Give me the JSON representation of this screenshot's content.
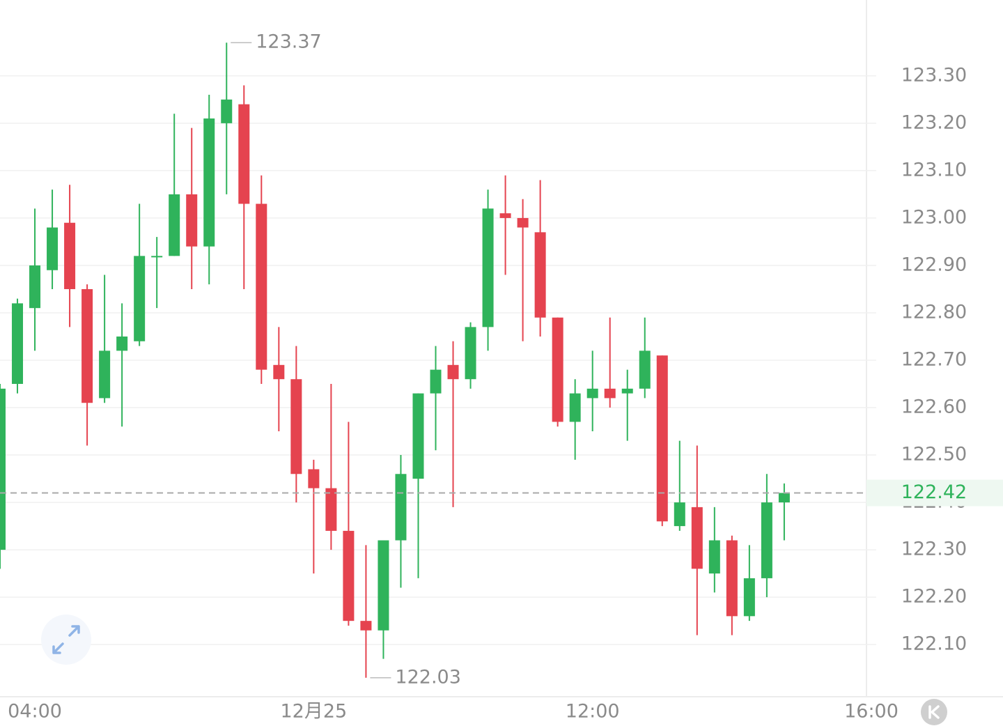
{
  "chart_data": {
    "type": "candlestick",
    "x": [
      0,
      1,
      2,
      3,
      4,
      5,
      6,
      7,
      8,
      9,
      10,
      11,
      12,
      13,
      14,
      15,
      16,
      17,
      18,
      19,
      20,
      21,
      22,
      23,
      24,
      25,
      26,
      27,
      28,
      29,
      30,
      31,
      32,
      33,
      34,
      35,
      36,
      37,
      38,
      39,
      40,
      41,
      42,
      43,
      44,
      45
    ],
    "open": [
      122.3,
      122.65,
      122.81,
      122.89,
      122.99,
      122.85,
      122.62,
      122.72,
      122.74,
      122.92,
      122.92,
      123.05,
      122.94,
      123.2,
      123.24,
      123.03,
      122.69,
      122.66,
      122.47,
      122.43,
      122.34,
      122.15,
      122.13,
      122.32,
      122.45,
      122.63,
      122.69,
      122.66,
      122.77,
      123.01,
      123.0,
      122.97,
      122.79,
      122.57,
      122.62,
      122.64,
      122.63,
      122.64,
      122.71,
      122.35,
      122.39,
      122.25,
      122.32,
      122.16,
      122.24,
      122.4
    ],
    "high": [
      122.65,
      122.83,
      123.02,
      123.06,
      123.07,
      122.86,
      122.88,
      122.82,
      123.03,
      122.96,
      123.22,
      123.19,
      123.26,
      123.37,
      123.28,
      123.09,
      122.77,
      122.73,
      122.49,
      122.65,
      122.57,
      122.31,
      122.32,
      122.5,
      122.63,
      122.73,
      122.74,
      122.78,
      123.06,
      123.09,
      123.04,
      123.08,
      122.79,
      122.66,
      122.72,
      122.79,
      122.68,
      122.79,
      122.71,
      122.53,
      122.52,
      122.39,
      122.33,
      122.31,
      122.46,
      122.44
    ],
    "low": [
      122.26,
      122.63,
      122.72,
      122.85,
      122.77,
      122.52,
      122.61,
      122.56,
      122.73,
      122.81,
      122.92,
      122.85,
      122.86,
      123.05,
      122.85,
      122.65,
      122.55,
      122.4,
      122.25,
      122.3,
      122.14,
      122.03,
      122.07,
      122.22,
      122.24,
      122.51,
      122.39,
      122.64,
      122.72,
      122.88,
      122.74,
      122.75,
      122.56,
      122.49,
      122.55,
      122.6,
      122.53,
      122.62,
      122.35,
      122.34,
      122.12,
      122.21,
      122.12,
      122.15,
      122.2,
      122.32
    ],
    "close": [
      122.64,
      122.82,
      122.9,
      122.98,
      122.85,
      122.61,
      122.72,
      122.75,
      122.92,
      122.92,
      123.05,
      122.94,
      123.21,
      123.25,
      123.03,
      122.68,
      122.66,
      122.46,
      122.43,
      122.34,
      122.15,
      122.13,
      122.32,
      122.46,
      122.63,
      122.68,
      122.66,
      122.77,
      123.02,
      123.0,
      122.98,
      122.79,
      122.57,
      122.63,
      122.64,
      122.62,
      122.64,
      122.72,
      122.36,
      122.4,
      122.26,
      122.32,
      122.16,
      122.24,
      122.4,
      122.42
    ],
    "up_color": "#2fb35b",
    "down_color": "#e5434f",
    "xlim": [
      0,
      49.72
    ],
    "xticks": [
      {
        "value": 2,
        "label": "04:00"
      },
      {
        "value": 18,
        "label": "12月25"
      },
      {
        "value": 34,
        "label": "12:00"
      },
      {
        "value": 50,
        "label": "16:00"
      }
    ],
    "ylim": [
      121.99,
      123.46
    ],
    "yticks": [
      {
        "value": 122.1,
        "label": "122.10"
      },
      {
        "value": 122.2,
        "label": "122.20"
      },
      {
        "value": 122.3,
        "label": "122.30"
      },
      {
        "value": 122.4,
        "label": "122.40"
      },
      {
        "value": 122.5,
        "label": "122.50"
      },
      {
        "value": 122.6,
        "label": "122.60"
      },
      {
        "value": 122.7,
        "label": "122.70"
      },
      {
        "value": 122.8,
        "label": "122.80"
      },
      {
        "value": 122.9,
        "label": "122.90"
      },
      {
        "value": 123.0,
        "label": "123.00"
      },
      {
        "value": 123.1,
        "label": "123.10"
      },
      {
        "value": 123.2,
        "label": "123.20"
      },
      {
        "value": 123.3,
        "label": "123.30"
      }
    ],
    "grid": true,
    "max_marker": {
      "value": 123.37,
      "label": "123.37"
    },
    "min_marker": {
      "value": 122.03,
      "label": "122.03"
    },
    "last_price": {
      "value": 122.42,
      "label": "122.42"
    }
  }
}
